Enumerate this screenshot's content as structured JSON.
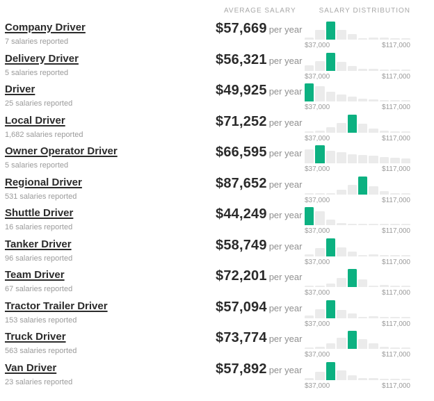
{
  "colors": {
    "accent_green": "#0cb181",
    "bar_gray": "#ebebeb",
    "text_dark": "#2b2b2b",
    "text_muted": "#9a9a9a"
  },
  "header": {
    "average_salary": "AVERAGE SALARY",
    "salary_distribution": "SALARY DISTRIBUTION"
  },
  "labels": {
    "per_year": "per year",
    "axis_min": "$37,000",
    "axis_max": "$117,000"
  },
  "rows": [
    {
      "title": "Company Driver",
      "reported": "7 salaries reported",
      "salary": "$57,669",
      "hist": {
        "bars": [
          0.12,
          0.54,
          1.0,
          0.54,
          0.3,
          0.08,
          0.12,
          0.12,
          0.08,
          0.06
        ],
        "highlight_index": 2,
        "min": "$37,000",
        "max": "$117,000"
      }
    },
    {
      "title": "Delivery Driver",
      "reported": "5 salaries reported",
      "salary": "$56,321",
      "hist": {
        "bars": [
          0.3,
          0.55,
          1.0,
          0.5,
          0.28,
          0.12,
          0.1,
          0.07,
          0.05,
          0.05
        ],
        "highlight_index": 2,
        "min": "$37,000",
        "max": "$117,000"
      }
    },
    {
      "title": "Driver",
      "reported": "25 salaries reported",
      "salary": "$49,925",
      "hist": {
        "bars": [
          1.0,
          0.85,
          0.55,
          0.4,
          0.28,
          0.14,
          0.1,
          0.08,
          0.06,
          0.05
        ],
        "highlight_index": 0,
        "min": "$37,000",
        "max": "$117,000"
      }
    },
    {
      "title": "Local Driver",
      "reported": "1,682 salaries reported",
      "salary": "$71,252",
      "hist": {
        "bars": [
          0.04,
          0.1,
          0.3,
          0.55,
          1.0,
          0.5,
          0.22,
          0.1,
          0.06,
          0.03
        ],
        "highlight_index": 4,
        "min": "$37,000",
        "max": "$117,000"
      }
    },
    {
      "title": "Owner Operator Driver",
      "reported": "5 salaries reported",
      "salary": "$66,595",
      "hist": {
        "bars": [
          0.75,
          1.0,
          0.7,
          0.62,
          0.5,
          0.48,
          0.42,
          0.35,
          0.3,
          0.28
        ],
        "highlight_index": 1,
        "min": "$37,000",
        "max": "$117,000"
      }
    },
    {
      "title": "Regional Driver",
      "reported": "531 salaries reported",
      "salary": "$87,652",
      "hist": {
        "bars": [
          0.02,
          0.03,
          0.08,
          0.25,
          0.55,
          1.0,
          0.45,
          0.2,
          0.06,
          0.02
        ],
        "highlight_index": 5,
        "min": "$37,000",
        "max": "$117,000"
      }
    },
    {
      "title": "Shuttle Driver",
      "reported": "16 salaries reported",
      "salary": "$44,249",
      "hist": {
        "bars": [
          1.0,
          0.75,
          0.3,
          0.1,
          0.05,
          0.05,
          0.05,
          0.05,
          0.05,
          0.04
        ],
        "highlight_index": 0,
        "min": "$37,000",
        "max": "$117,000"
      }
    },
    {
      "title": "Tanker Driver",
      "reported": "96 salaries reported",
      "salary": "$58,749",
      "hist": {
        "bars": [
          0.1,
          0.45,
          1.0,
          0.5,
          0.25,
          0.06,
          0.1,
          0.04,
          0.03,
          0.02
        ],
        "highlight_index": 2,
        "min": "$37,000",
        "max": "$117,000"
      }
    },
    {
      "title": "Team Driver",
      "reported": "67 salaries reported",
      "salary": "$72,201",
      "hist": {
        "bars": [
          0.03,
          0.05,
          0.18,
          0.5,
          1.0,
          0.42,
          0.08,
          0.1,
          0.03,
          0.02
        ],
        "highlight_index": 4,
        "min": "$37,000",
        "max": "$117,000"
      }
    },
    {
      "title": "Tractor Trailer Driver",
      "reported": "153 salaries reported",
      "salary": "$57,094",
      "hist": {
        "bars": [
          0.15,
          0.5,
          1.0,
          0.45,
          0.25,
          0.06,
          0.1,
          0.06,
          0.03,
          0.02
        ],
        "highlight_index": 2,
        "min": "$37,000",
        "max": "$117,000"
      }
    },
    {
      "title": "Truck Driver",
      "reported": "563 salaries reported",
      "salary": "$73,774",
      "hist": {
        "bars": [
          0.05,
          0.1,
          0.3,
          0.6,
          1.0,
          0.55,
          0.3,
          0.12,
          0.08,
          0.04
        ],
        "highlight_index": 4,
        "min": "$37,000",
        "max": "$117,000"
      }
    },
    {
      "title": "Van Driver",
      "reported": "23 salaries reported",
      "salary": "$57,892",
      "hist": {
        "bars": [
          0.1,
          0.45,
          1.0,
          0.55,
          0.25,
          0.1,
          0.12,
          0.05,
          0.03,
          0.02
        ],
        "highlight_index": 2,
        "min": "$37,000",
        "max": "$117,000"
      }
    }
  ]
}
